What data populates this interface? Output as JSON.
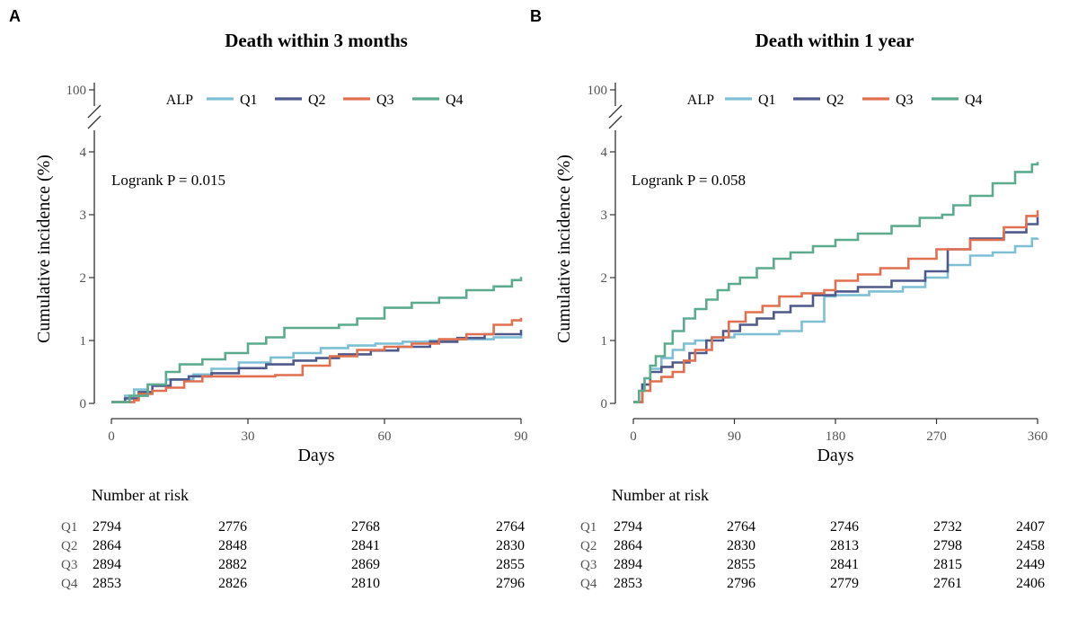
{
  "chart_data": [
    {
      "type": "line",
      "panel_label": "A",
      "title": "Death within 3 months",
      "xlabel": "Days",
      "ylabel": "Cumulative incidence (%)",
      "xlim": [
        0,
        90
      ],
      "ylim": [
        0,
        4
      ],
      "x_ticks": [
        "0",
        "30",
        "60",
        "90"
      ],
      "y_ticks": [
        "0",
        "1",
        "2",
        "3",
        "4"
      ],
      "y_break_tick": "100",
      "legend": {
        "title": "ALP",
        "placement": "top"
      },
      "annotation": "Logrank P = 0.015",
      "series": [
        {
          "name": "Q1",
          "color": "#7FBFD4",
          "x": [
            0,
            3,
            5,
            8,
            12,
            18,
            22,
            28,
            35,
            40,
            46,
            52,
            58,
            64,
            70,
            76,
            84,
            90
          ],
          "values": [
            0.02,
            0.12,
            0.22,
            0.3,
            0.38,
            0.46,
            0.55,
            0.65,
            0.73,
            0.8,
            0.88,
            0.92,
            0.95,
            0.98,
            1.0,
            1.02,
            1.05,
            1.1
          ]
        },
        {
          "name": "Q2",
          "color": "#4F5A8A",
          "x": [
            0,
            3,
            6,
            9,
            13,
            17,
            22,
            28,
            34,
            40,
            45,
            50,
            57,
            63,
            70,
            76,
            82,
            90
          ],
          "values": [
            0.02,
            0.08,
            0.18,
            0.28,
            0.38,
            0.43,
            0.48,
            0.56,
            0.62,
            0.68,
            0.72,
            0.78,
            0.84,
            0.9,
            0.98,
            1.04,
            1.1,
            1.17
          ]
        },
        {
          "name": "Q3",
          "color": "#E07050",
          "x": [
            0,
            5,
            6,
            9,
            12,
            16,
            20,
            25,
            32,
            36,
            42,
            48,
            54,
            60,
            66,
            72,
            78,
            84,
            88,
            90
          ],
          "values": [
            0.02,
            0.05,
            0.15,
            0.2,
            0.25,
            0.35,
            0.43,
            0.43,
            0.43,
            0.45,
            0.6,
            0.75,
            0.85,
            0.9,
            0.95,
            1.02,
            1.1,
            1.25,
            1.32,
            1.36
          ]
        },
        {
          "name": "Q4",
          "color": "#5DAB8E",
          "x": [
            0,
            4,
            8,
            12,
            15,
            20,
            25,
            30,
            34,
            38,
            44,
            50,
            54,
            60,
            66,
            72,
            78,
            84,
            88,
            90
          ],
          "values": [
            0.02,
            0.12,
            0.3,
            0.5,
            0.62,
            0.7,
            0.8,
            0.95,
            1.05,
            1.2,
            1.2,
            1.25,
            1.35,
            1.52,
            1.6,
            1.68,
            1.8,
            1.86,
            1.96,
            2.01
          ]
        }
      ],
      "number_at_risk": {
        "title": "Number at risk",
        "groups": [
          "Q1",
          "Q2",
          "Q3",
          "Q4"
        ],
        "rows": [
          [
            "2794",
            "2776",
            "2768",
            "2764"
          ],
          [
            "2864",
            "2848",
            "2841",
            "2830"
          ],
          [
            "2894",
            "2882",
            "2869",
            "2855"
          ],
          [
            "2853",
            "2826",
            "2810",
            "2796"
          ]
        ]
      }
    },
    {
      "type": "line",
      "panel_label": "B",
      "title": "Death within 1 year",
      "xlabel": "Days",
      "ylabel": "Cumulative incidence (%)",
      "xlim": [
        0,
        360
      ],
      "ylim": [
        0,
        4
      ],
      "x_ticks": [
        "0",
        "90",
        "180",
        "270",
        "360"
      ],
      "y_ticks": [
        "0",
        "1",
        "2",
        "3",
        "4"
      ],
      "y_break_tick": "100",
      "legend": {
        "title": "ALP",
        "placement": "top"
      },
      "annotation": "Logrank P = 0.058",
      "series": [
        {
          "name": "Q1",
          "color": "#7FBFD4",
          "x": [
            0,
            8,
            15,
            25,
            35,
            45,
            55,
            70,
            90,
            110,
            130,
            150,
            170,
            180,
            210,
            240,
            260,
            280,
            300,
            320,
            340,
            355,
            360
          ],
          "values": [
            0.02,
            0.3,
            0.55,
            0.72,
            0.85,
            0.95,
            1.0,
            1.05,
            1.1,
            1.1,
            1.15,
            1.3,
            1.7,
            1.72,
            1.78,
            1.85,
            2.0,
            2.2,
            2.35,
            2.4,
            2.5,
            2.62,
            2.63
          ]
        },
        {
          "name": "Q2",
          "color": "#4F5A8A",
          "x": [
            0,
            8,
            15,
            25,
            35,
            50,
            65,
            80,
            95,
            110,
            125,
            140,
            160,
            180,
            200,
            230,
            260,
            280,
            300,
            330,
            350,
            360
          ],
          "values": [
            0.02,
            0.3,
            0.5,
            0.58,
            0.65,
            0.8,
            1.0,
            1.15,
            1.25,
            1.35,
            1.45,
            1.55,
            1.72,
            1.78,
            1.85,
            1.95,
            2.1,
            2.45,
            2.62,
            2.72,
            2.85,
            2.96
          ]
        },
        {
          "name": "Q3",
          "color": "#E07050",
          "x": [
            0,
            8,
            15,
            25,
            35,
            45,
            55,
            70,
            85,
            100,
            115,
            130,
            150,
            170,
            180,
            200,
            220,
            245,
            270,
            300,
            330,
            350,
            360
          ],
          "values": [
            0.02,
            0.2,
            0.35,
            0.42,
            0.5,
            0.68,
            0.85,
            1.05,
            1.3,
            1.45,
            1.55,
            1.7,
            1.75,
            1.8,
            1.95,
            2.05,
            2.15,
            2.3,
            2.45,
            2.6,
            2.8,
            2.98,
            3.07
          ]
        },
        {
          "name": "Q4",
          "color": "#5DAB8E",
          "x": [
            0,
            5,
            10,
            15,
            20,
            28,
            35,
            45,
            55,
            65,
            75,
            85,
            95,
            110,
            125,
            140,
            160,
            180,
            200,
            230,
            255,
            275,
            285,
            300,
            320,
            340,
            355,
            360
          ],
          "values": [
            0.02,
            0.2,
            0.4,
            0.6,
            0.75,
            0.95,
            1.15,
            1.35,
            1.5,
            1.65,
            1.8,
            1.9,
            2.0,
            2.15,
            2.3,
            2.4,
            2.5,
            2.6,
            2.7,
            2.82,
            2.95,
            3.0,
            3.15,
            3.3,
            3.5,
            3.68,
            3.8,
            3.84
          ]
        }
      ],
      "number_at_risk": {
        "title": "Number at risk",
        "groups": [
          "Q1",
          "Q2",
          "Q3",
          "Q4"
        ],
        "rows": [
          [
            "2794",
            "2764",
            "2746",
            "2732",
            "2407"
          ],
          [
            "2864",
            "2830",
            "2813",
            "2798",
            "2458"
          ],
          [
            "2894",
            "2855",
            "2841",
            "2815",
            "2449"
          ],
          [
            "2853",
            "2796",
            "2779",
            "2761",
            "2406"
          ]
        ]
      }
    }
  ]
}
